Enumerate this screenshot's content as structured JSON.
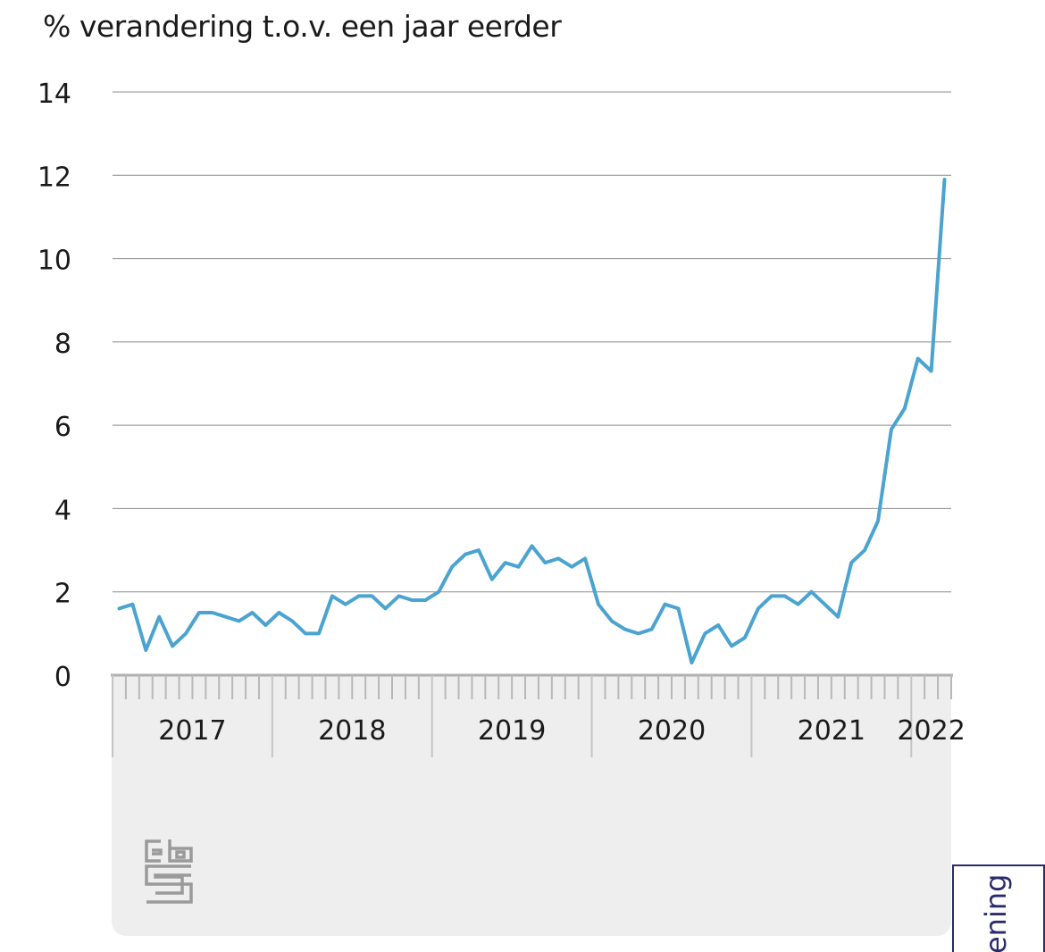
{
  "chart_data": {
    "type": "line",
    "title": "% verandering t.o.v. een jaar eerder",
    "xlabel": "",
    "ylabel": "% verandering t.o.v. een jaar eerder",
    "ylim": [
      0,
      14
    ],
    "yticks": [
      0,
      2,
      4,
      6,
      8,
      10,
      12,
      14
    ],
    "x_start": "2017-01",
    "x_end": "2022-03",
    "xtick_labels": [
      "2017",
      "2018",
      "2019",
      "2020",
      "2021",
      "2022"
    ],
    "grid": true,
    "line_color": "#4ba3d0",
    "series": [
      {
        "values": [
          1.6,
          1.7,
          0.6,
          1.4,
          0.7,
          1.0,
          1.5,
          1.5,
          1.4,
          1.3,
          1.5,
          1.2,
          1.5,
          1.3,
          1.0,
          1.0,
          1.9,
          1.7,
          1.9,
          1.9,
          1.6,
          1.9,
          1.8,
          1.8,
          2.0,
          2.6,
          2.9,
          3.0,
          2.3,
          2.7,
          2.6,
          3.1,
          2.7,
          2.8,
          2.6,
          2.8,
          1.7,
          1.3,
          1.1,
          1.0,
          1.1,
          1.7,
          1.6,
          0.3,
          1.0,
          1.2,
          0.7,
          0.9,
          1.6,
          1.9,
          1.9,
          1.7,
          2.0,
          1.7,
          1.4,
          2.7,
          3.0,
          3.7,
          5.9,
          6.4,
          7.6,
          7.3,
          11.9
        ]
      }
    ]
  },
  "logo": {
    "name": "cbs-logo",
    "text": "cbs"
  },
  "side_tab": {
    "label": "ening"
  }
}
